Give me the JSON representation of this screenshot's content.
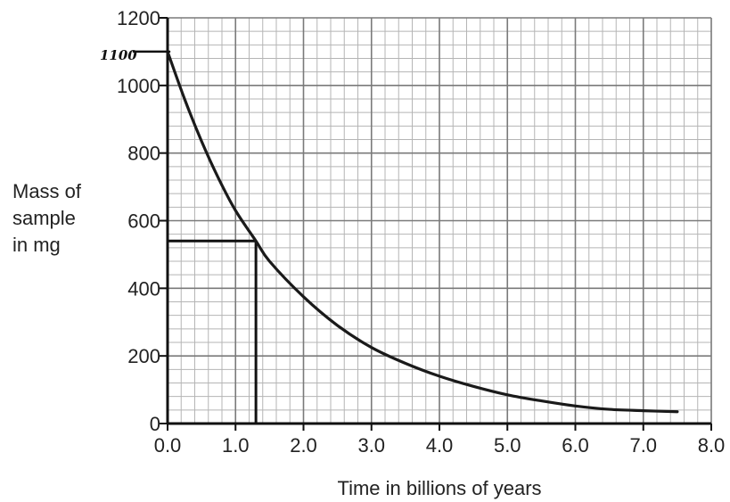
{
  "chart_data": {
    "type": "line",
    "title": "",
    "xlabel": "Time in billions of years",
    "ylabel_lines": [
      "Mass of",
      "sample",
      "in mg"
    ],
    "xlim": [
      0,
      8
    ],
    "ylim": [
      0,
      1200
    ],
    "x_ticks": [
      0.0,
      1.0,
      2.0,
      3.0,
      4.0,
      5.0,
      6.0,
      7.0,
      8.0
    ],
    "x_tick_labels": [
      "0.0",
      "1.0",
      "2.0",
      "3.0",
      "4.0",
      "5.0",
      "6.0",
      "7.0",
      "8.0"
    ],
    "y_ticks": [
      0,
      200,
      400,
      600,
      800,
      1000,
      1200
    ],
    "y_tick_labels": [
      "0",
      "200",
      "400",
      "600",
      "800",
      "1000",
      "1200"
    ],
    "grid": {
      "major": true,
      "minor": true,
      "minor_per_major_x": 5,
      "minor_per_major_y": 5
    },
    "series": [
      {
        "x": [
          0.0,
          0.25,
          0.5,
          0.75,
          1.0,
          1.3,
          1.5,
          2.0,
          2.5,
          3.0,
          3.5,
          4.0,
          4.5,
          5.0,
          5.5,
          6.0,
          6.5,
          7.0,
          7.5
        ],
        "y": [
          1100,
          960,
          835,
          725,
          630,
          540,
          480,
          375,
          290,
          225,
          178,
          140,
          110,
          85,
          67,
          52,
          42,
          38,
          35
        ]
      }
    ],
    "annotations": [
      {
        "type": "handwritten-label",
        "text": "1100",
        "y": 1100
      },
      {
        "type": "reference-lines",
        "x": 1.3,
        "y": 540
      }
    ],
    "colors": {
      "curve": "#1a1a1a",
      "major_grid": "#7a7a7a",
      "minor_grid": "#b5b5b5",
      "axis": "#111111"
    }
  }
}
